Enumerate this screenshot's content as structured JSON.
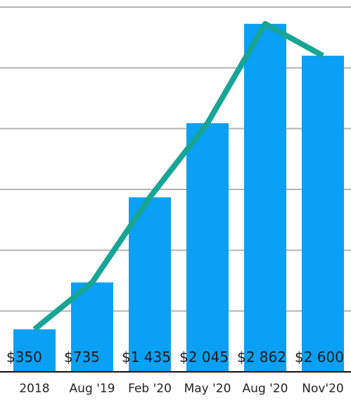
{
  "chart_data": {
    "type": "bar",
    "title": "",
    "xlabel": "",
    "ylabel": "",
    "categories": [
      "2018",
      "Aug '19",
      "Feb '20",
      "May '20",
      "Aug '20",
      "Nov'20"
    ],
    "series": [
      {
        "type": "bar",
        "values": [
          350,
          735,
          1435,
          2045,
          2862,
          2600
        ]
      },
      {
        "type": "line",
        "values": [
          350,
          735,
          1435,
          2045,
          2862,
          2600
        ]
      }
    ],
    "data_labels": [
      "$350",
      "$735",
      "$1 435",
      "$2 045",
      "$2 862",
      "$2 600"
    ],
    "ylim": [
      0,
      3000
    ],
    "y_gridlines": [
      500,
      1000,
      1500,
      2000,
      2500,
      3000
    ],
    "y_tick_labels_shown": false,
    "grid": true,
    "legend": "none",
    "colors": {
      "bar": "#0aa0f5",
      "line": "#17a595",
      "grid": "#b3b3b3",
      "axis": "#111111",
      "text": "#1a1a1a"
    }
  }
}
